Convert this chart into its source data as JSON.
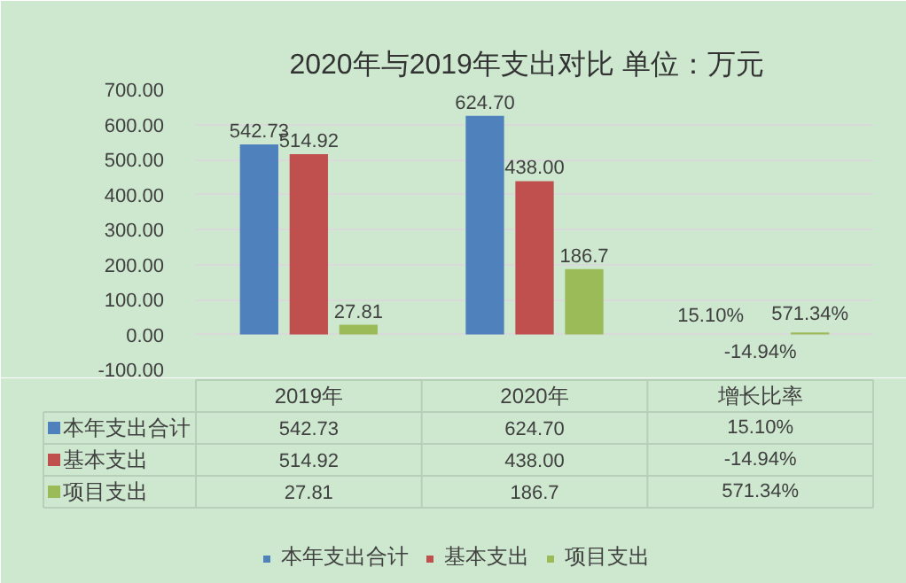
{
  "chart_data": {
    "type": "bar",
    "title": "2020年与2019年支出对比   单位：万元",
    "categories": [
      "2019年",
      "2020年",
      "增长比率"
    ],
    "series": [
      {
        "name": "本年支出合计",
        "color": "#4f81bd",
        "values": [
          542.73,
          624.7,
          0.151
        ],
        "value_labels": [
          "542.73",
          "624.70",
          "15.10%"
        ]
      },
      {
        "name": "基本支出",
        "color": "#c0504d",
        "values": [
          514.92,
          438.0,
          -0.1494
        ],
        "value_labels": [
          "514.92",
          "438.00",
          "-14.94%"
        ]
      },
      {
        "name": "项目支出",
        "color": "#9bbb59",
        "values": [
          27.81,
          186.7,
          5.7134
        ],
        "value_labels": [
          "27.81",
          "186.7",
          "571.34%"
        ]
      }
    ],
    "ylim": [
      -100,
      700
    ],
    "yticks": [
      {
        "value": -100,
        "label": "-100.00"
      },
      {
        "value": 0,
        "label": "0.00"
      },
      {
        "value": 100,
        "label": "100.00"
      },
      {
        "value": 200,
        "label": "200.00"
      },
      {
        "value": 300,
        "label": "300.00"
      },
      {
        "value": 400,
        "label": "400.00"
      },
      {
        "value": 500,
        "label": "500.00"
      },
      {
        "value": 600,
        "label": "600.00"
      },
      {
        "value": 700,
        "label": "700.00"
      }
    ],
    "grid": "y",
    "legend": "bottom"
  }
}
